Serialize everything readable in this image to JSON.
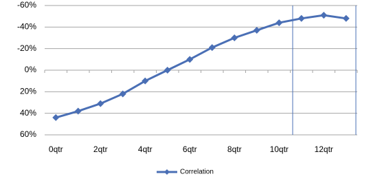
{
  "chart_data": {
    "type": "line",
    "categories": [
      "0qtr",
      null,
      "2qtr",
      null,
      "4qtr",
      null,
      "6qtr",
      null,
      "8qtr",
      null,
      "10qtr",
      null,
      "12qtr",
      null
    ],
    "series": [
      {
        "name": "Correlation",
        "color": "#4a6fb5",
        "values": [
          44,
          38,
          31,
          22,
          10,
          0,
          -10,
          -21,
          -30,
          -37,
          -44,
          -48,
          -51,
          -48
        ]
      }
    ],
    "ylim": [
      -60,
      60
    ],
    "reverse_y": true,
    "yticks": [
      {
        "value": -60,
        "label": "-60%"
      },
      {
        "value": -40,
        "label": "-40%"
      },
      {
        "value": -20,
        "label": "-20%"
      },
      {
        "value": 0,
        "label": "0%"
      },
      {
        "value": 20,
        "label": "20%"
      },
      {
        "value": 40,
        "label": "40%"
      },
      {
        "value": 60,
        "label": "60%"
      }
    ],
    "grid": true,
    "legend": "bottom"
  }
}
